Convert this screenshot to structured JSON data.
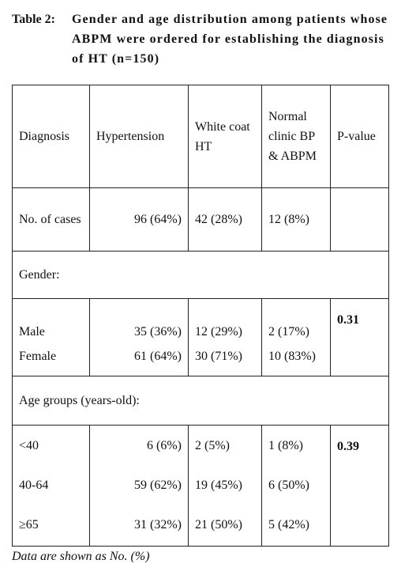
{
  "caption": {
    "label": "Table 2:",
    "text": "Gender and age distribution among patients whose ABPM were ordered for establishing the diagnosis of HT (n=150)"
  },
  "table": {
    "header": [
      "Diagnosis",
      "Hypertension",
      "White coat HT",
      "Normal clinic BP & ABPM",
      "P-value"
    ],
    "cases": [
      "No. of cases",
      "96 (64%)",
      "42 (28%)",
      "12 (8%)"
    ],
    "gender": {
      "label": "Gender:",
      "rows": [
        [
          "Male",
          "35 (36%)",
          "12 (29%)",
          "2 (17%)"
        ],
        [
          "Female",
          "61 (64%)",
          "30 (71%)",
          "10 (83%)"
        ]
      ],
      "p_value": "0.31"
    },
    "age": {
      "label": "Age groups (years-old):",
      "rows": [
        [
          "<40",
          "6 (6%)",
          "2 (5%)",
          "1 (8%)"
        ],
        [
          "40-64",
          "59 (62%)",
          "19 (45%)",
          "6 (50%)"
        ],
        [
          "≥65",
          "31 (32%)",
          "21 (50%)",
          "5 (42%)"
        ]
      ],
      "p_value": "0.39"
    }
  },
  "footnote": "Data are shown as No. (%)"
}
